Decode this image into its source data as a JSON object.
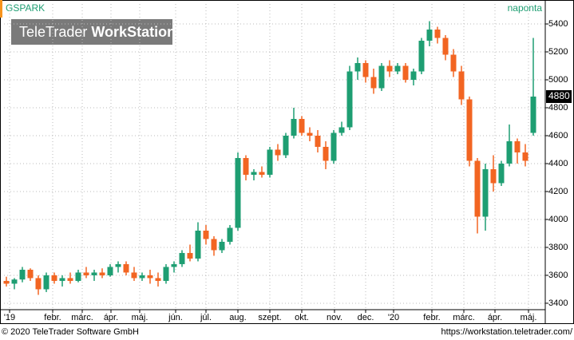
{
  "chart_data": {
    "type": "candlestick",
    "title": "GSPARK",
    "interval": "naponta",
    "watermark": {
      "brand": "TeleTrader",
      "product": "WorkStation"
    },
    "footer_left": "© 2020 TeleTrader Software GmbH",
    "footer_right": "https://workstation.teletrader.com/",
    "up_color": "#1e9e72",
    "down_color": "#f26522",
    "grid": true,
    "ylim": [
      3354,
      5543
    ],
    "yticks": [
      3400,
      3600,
      3800,
      4000,
      4200,
      4400,
      4600,
      4800,
      5000,
      5200,
      5400
    ],
    "xlim": [
      -0.3,
      67.5
    ],
    "xticks": [
      {
        "value": 0.4,
        "label": "'19"
      },
      {
        "value": 5.8,
        "label": "febr."
      },
      {
        "value": 9.5,
        "label": "márc."
      },
      {
        "value": 13.1,
        "label": "ápr."
      },
      {
        "value": 16.7,
        "label": "máj."
      },
      {
        "value": 21.2,
        "label": "jún."
      },
      {
        "value": 25,
        "label": "júl."
      },
      {
        "value": 29,
        "label": "aug."
      },
      {
        "value": 33,
        "label": "szept."
      },
      {
        "value": 37,
        "label": "okt."
      },
      {
        "value": 41.1,
        "label": "nov."
      },
      {
        "value": 45,
        "label": "dec."
      },
      {
        "value": 48.5,
        "label": "'20"
      },
      {
        "value": 53.3,
        "label": "febr."
      },
      {
        "value": 57.3,
        "label": "márc."
      },
      {
        "value": 61.2,
        "label": "ápr."
      },
      {
        "value": 65.4,
        "label": "máj."
      }
    ],
    "last_value": 4880,
    "open": [
      3560,
      3540,
      3570,
      3640,
      3580,
      3500,
      3600,
      3560,
      3580,
      3560,
      3620,
      3600,
      3620,
      3600,
      3660,
      3680,
      3620,
      3580,
      3600,
      3580,
      3560,
      3660,
      3680,
      3760,
      3720,
      3920,
      3860,
      3780,
      3840,
      3940,
      4440,
      4320,
      4340,
      4320,
      4500,
      4460,
      4600,
      4720,
      4620,
      4600,
      4520,
      4420,
      4620,
      4660,
      5060,
      5120,
      5020,
      4940,
      5100,
      5060,
      5100,
      5000,
      5060,
      5280,
      5360,
      5300,
      5180,
      5060,
      4860,
      4420,
      4020,
      4360,
      4260,
      4400,
      4560,
      4480,
      4620
    ],
    "high": [
      3590,
      3580,
      3660,
      3650,
      3600,
      3620,
      3620,
      3600,
      3620,
      3640,
      3660,
      3640,
      3650,
      3680,
      3700,
      3700,
      3660,
      3620,
      3640,
      3620,
      3680,
      3700,
      3780,
      3820,
      3980,
      3960,
      3880,
      3860,
      3960,
      4480,
      4460,
      4360,
      4380,
      4520,
      4540,
      4620,
      4800,
      4740,
      4660,
      4640,
      4560,
      4640,
      4700,
      5100,
      5160,
      5140,
      5080,
      5120,
      5140,
      5120,
      5120,
      5080,
      5300,
      5420,
      5380,
      5320,
      5220,
      5100,
      4880,
      4440,
      4400,
      4460,
      4420,
      4680,
      4580,
      4540,
      5300
    ],
    "low": [
      3520,
      3500,
      3550,
      3560,
      3460,
      3480,
      3540,
      3520,
      3540,
      3550,
      3580,
      3560,
      3580,
      3590,
      3620,
      3600,
      3560,
      3560,
      3540,
      3520,
      3540,
      3620,
      3660,
      3700,
      3700,
      3820,
      3740,
      3760,
      3820,
      3920,
      4280,
      4280,
      4300,
      4300,
      4420,
      4440,
      4580,
      4600,
      4560,
      4480,
      4360,
      4400,
      4600,
      4640,
      5000,
      4980,
      4900,
      4920,
      5020,
      5040,
      4980,
      4960,
      5040,
      5240,
      5260,
      5140,
      5020,
      4820,
      4380,
      3900,
      3920,
      4200,
      4240,
      4380,
      4400,
      4380,
      4600
    ],
    "close": [
      3540,
      3570,
      3640,
      3580,
      3500,
      3600,
      3560,
      3580,
      3560,
      3620,
      3600,
      3620,
      3600,
      3660,
      3680,
      3620,
      3580,
      3600,
      3580,
      3560,
      3660,
      3680,
      3760,
      3720,
      3920,
      3860,
      3780,
      3840,
      3940,
      4440,
      4320,
      4340,
      4320,
      4500,
      4460,
      4600,
      4720,
      4620,
      4600,
      4520,
      4420,
      4620,
      4660,
      5060,
      5120,
      5020,
      4940,
      5100,
      5060,
      5100,
      5000,
      5060,
      5280,
      5360,
      5300,
      5180,
      5060,
      4860,
      4420,
      4020,
      4360,
      4260,
      4400,
      4560,
      4480,
      4420,
      4880
    ]
  }
}
